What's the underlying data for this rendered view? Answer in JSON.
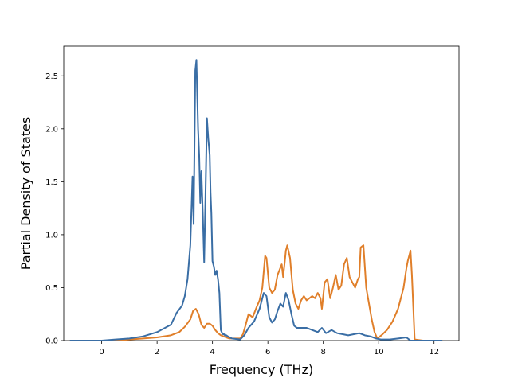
{
  "chart_data": {
    "type": "line",
    "title": "",
    "xlabel": "Frequency (THz)",
    "ylabel": "Partial Density of States",
    "xlim": [
      -1.37,
      12.9
    ],
    "ylim": [
      0.0,
      2.78
    ],
    "xticks": [
      0,
      2,
      4,
      6,
      8,
      10,
      12
    ],
    "xtick_labels": [
      "0",
      "2",
      "4",
      "6",
      "8",
      "10",
      "12"
    ],
    "yticks": [
      0.0,
      0.5,
      1.0,
      1.5,
      2.0,
      2.5
    ],
    "ytick_labels": [
      "0.0",
      "0.5",
      "1.0",
      "1.5",
      "2.0",
      "2.5"
    ],
    "grid": false,
    "legend": "none",
    "series": [
      {
        "color": "#3a6ea5",
        "x": [
          -1.15,
          0.0,
          0.5,
          1.0,
          1.5,
          2.0,
          2.5,
          2.7,
          2.9,
          3.0,
          3.1,
          3.2,
          3.25,
          3.28,
          3.32,
          3.38,
          3.42,
          3.48,
          3.52,
          3.56,
          3.6,
          3.65,
          3.7,
          3.75,
          3.8,
          3.85,
          3.9,
          3.93,
          3.96,
          4.0,
          4.05,
          4.1,
          4.15,
          4.2,
          4.25,
          4.3,
          4.35,
          4.38,
          4.42,
          4.45,
          4.5,
          4.55,
          4.7,
          5.0,
          5.15,
          5.3,
          5.5,
          5.7,
          5.85,
          5.95,
          6.05,
          6.15,
          6.25,
          6.35,
          6.45,
          6.55,
          6.65,
          6.75,
          6.85,
          6.95,
          7.05,
          7.2,
          7.4,
          7.6,
          7.8,
          7.95,
          8.1,
          8.3,
          8.5,
          8.7,
          8.9,
          9.1,
          9.3,
          9.5,
          9.7,
          9.9,
          10.1,
          10.4,
          10.7,
          11.0,
          11.15,
          11.5,
          12.3
        ],
        "y": [
          0.0,
          0.0,
          0.01,
          0.02,
          0.04,
          0.08,
          0.15,
          0.26,
          0.33,
          0.42,
          0.58,
          0.9,
          1.3,
          1.55,
          1.1,
          2.55,
          2.65,
          2.0,
          1.75,
          1.3,
          1.6,
          1.2,
          0.74,
          1.4,
          2.1,
          1.9,
          1.75,
          1.4,
          1.2,
          0.75,
          0.7,
          0.62,
          0.66,
          0.58,
          0.45,
          0.1,
          0.07,
          0.06,
          0.06,
          0.05,
          0.05,
          0.04,
          0.02,
          0.01,
          0.05,
          0.12,
          0.18,
          0.3,
          0.45,
          0.42,
          0.22,
          0.17,
          0.2,
          0.28,
          0.35,
          0.32,
          0.45,
          0.38,
          0.25,
          0.14,
          0.12,
          0.12,
          0.12,
          0.1,
          0.08,
          0.12,
          0.07,
          0.1,
          0.07,
          0.06,
          0.05,
          0.06,
          0.07,
          0.05,
          0.04,
          0.02,
          0.01,
          0.01,
          0.02,
          0.03,
          0.0,
          0.0,
          0.0
        ]
      },
      {
        "color": "#e07f2a",
        "x": [
          -1.15,
          0.0,
          0.5,
          1.0,
          1.5,
          2.0,
          2.5,
          2.8,
          3.0,
          3.2,
          3.3,
          3.4,
          3.5,
          3.6,
          3.7,
          3.8,
          3.9,
          4.0,
          4.1,
          4.2,
          4.3,
          4.4,
          4.5,
          4.6,
          4.8,
          5.0,
          5.1,
          5.2,
          5.3,
          5.45,
          5.6,
          5.7,
          5.8,
          5.9,
          5.95,
          6.05,
          6.15,
          6.25,
          6.35,
          6.5,
          6.55,
          6.6,
          6.65,
          6.7,
          6.8,
          6.9,
          7.0,
          7.1,
          7.2,
          7.3,
          7.4,
          7.5,
          7.6,
          7.7,
          7.8,
          7.9,
          7.95,
          8.05,
          8.15,
          8.25,
          8.35,
          8.45,
          8.55,
          8.65,
          8.75,
          8.85,
          8.95,
          9.05,
          9.15,
          9.25,
          9.3,
          9.35,
          9.45,
          9.55,
          9.65,
          9.75,
          9.85,
          9.95,
          10.1,
          10.3,
          10.5,
          10.7,
          10.9,
          11.0,
          11.05,
          11.15,
          11.2,
          11.3,
          11.6,
          12.3
        ],
        "y": [
          0.0,
          0.0,
          0.0,
          0.01,
          0.02,
          0.03,
          0.05,
          0.08,
          0.13,
          0.2,
          0.28,
          0.3,
          0.25,
          0.15,
          0.12,
          0.16,
          0.16,
          0.14,
          0.1,
          0.07,
          0.05,
          0.04,
          0.03,
          0.02,
          0.02,
          0.02,
          0.06,
          0.15,
          0.25,
          0.22,
          0.32,
          0.38,
          0.5,
          0.8,
          0.78,
          0.5,
          0.45,
          0.48,
          0.62,
          0.72,
          0.6,
          0.72,
          0.85,
          0.9,
          0.78,
          0.48,
          0.35,
          0.3,
          0.38,
          0.42,
          0.38,
          0.4,
          0.42,
          0.4,
          0.45,
          0.4,
          0.3,
          0.55,
          0.58,
          0.4,
          0.5,
          0.62,
          0.48,
          0.52,
          0.72,
          0.78,
          0.6,
          0.55,
          0.5,
          0.58,
          0.6,
          0.88,
          0.9,
          0.5,
          0.35,
          0.2,
          0.08,
          0.02,
          0.05,
          0.1,
          0.18,
          0.3,
          0.5,
          0.68,
          0.75,
          0.85,
          0.62,
          0.01,
          0.0,
          0.0
        ]
      }
    ]
  }
}
